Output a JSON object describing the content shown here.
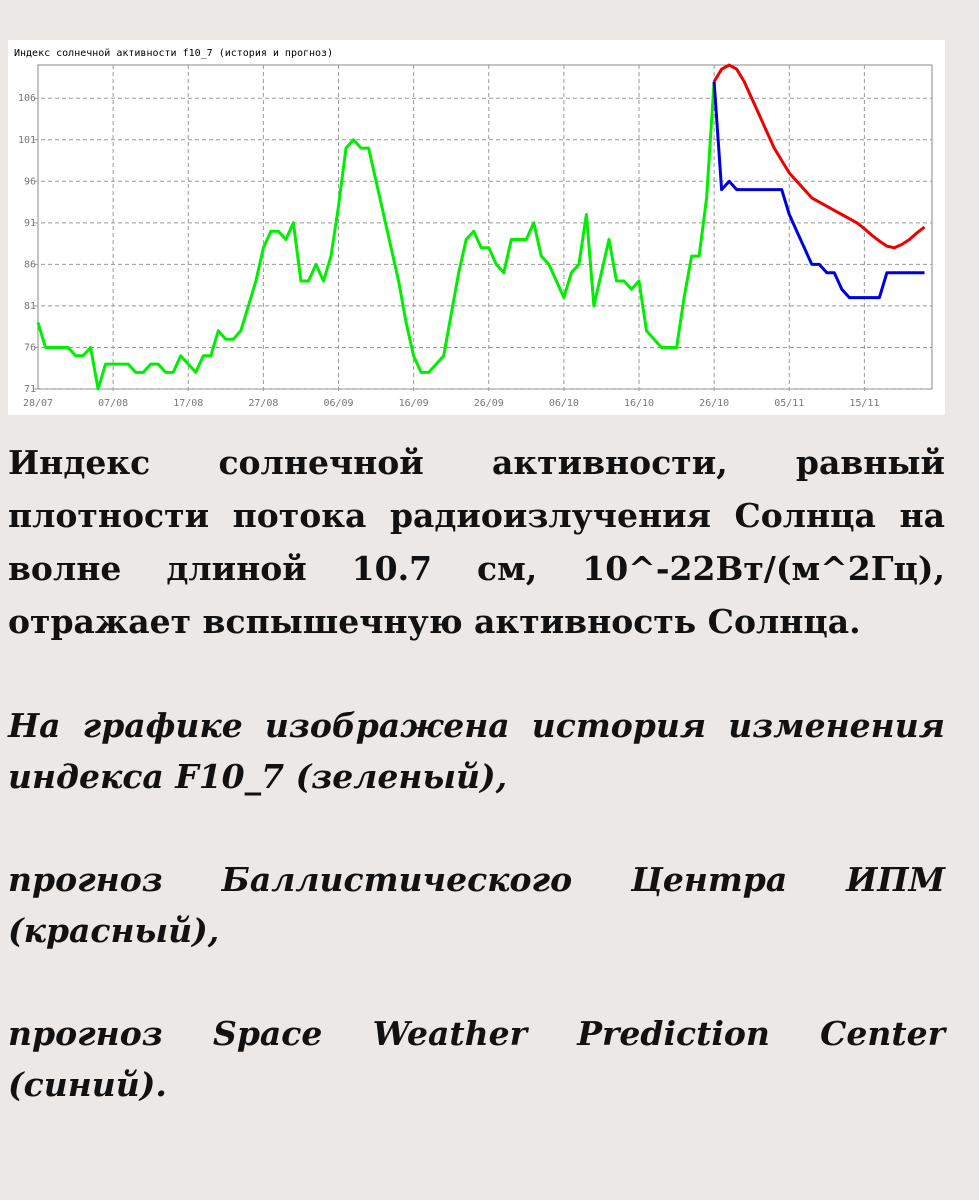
{
  "chart_data": {
    "type": "line",
    "title": "Индекс солнечной активности f10_7 (история и прогноз)",
    "categories": [
      "28/07",
      null,
      null,
      null,
      null,
      null,
      null,
      null,
      null,
      null,
      "07/08",
      null,
      null,
      null,
      null,
      null,
      null,
      null,
      null,
      null,
      "17/08",
      null,
      null,
      null,
      null,
      null,
      null,
      null,
      null,
      null,
      "27/08",
      null,
      null,
      null,
      null,
      null,
      null,
      null,
      null,
      null,
      "06/09",
      null,
      null,
      null,
      null,
      null,
      null,
      null,
      null,
      null,
      "16/09",
      null,
      null,
      null,
      null,
      null,
      null,
      null,
      null,
      null,
      "26/09",
      null,
      null,
      null,
      null,
      null,
      null,
      null,
      null,
      null,
      "06/10",
      null,
      null,
      null,
      null,
      null,
      null,
      null,
      null,
      null,
      "16/10",
      null,
      null,
      null,
      null,
      null,
      null,
      null,
      null,
      null,
      "26/10",
      null,
      null,
      null,
      null,
      null,
      null,
      null,
      null,
      null,
      "05/11",
      null,
      null,
      null,
      null,
      null,
      null,
      null,
      null,
      null,
      "15/11",
      null,
      null,
      null,
      null,
      null,
      null,
      null,
      null,
      null
    ],
    "series": [
      {
        "color": "#00ee00",
        "values": [
          79,
          76,
          76,
          76,
          76,
          75,
          75,
          76,
          71,
          74,
          74,
          74,
          74,
          73,
          73,
          74,
          74,
          73,
          73,
          75,
          74,
          73,
          75,
          75,
          78,
          77,
          77,
          78,
          81,
          84,
          88,
          90,
          90,
          89,
          91,
          84,
          84,
          86,
          84,
          87,
          93,
          100,
          101,
          100,
          100,
          96,
          92,
          88,
          84,
          79,
          75,
          73,
          73,
          74,
          75,
          80,
          85,
          89,
          90,
          88,
          88,
          86,
          85,
          89,
          89,
          89,
          91,
          87,
          86,
          84,
          82,
          85,
          86,
          92,
          81,
          85,
          89,
          84,
          84,
          83,
          84,
          78,
          77,
          76,
          76,
          76,
          82,
          87,
          87,
          94,
          108,
          null,
          null,
          null,
          null,
          null,
          null,
          null,
          null,
          null,
          null,
          null,
          null,
          null,
          null,
          null,
          null,
          null,
          null,
          null,
          null,
          null,
          null,
          null,
          null,
          null,
          null,
          null,
          null,
          null
        ]
      },
      {
        "color": "#ee0000",
        "values": [
          null,
          null,
          null,
          null,
          null,
          null,
          null,
          null,
          null,
          null,
          null,
          null,
          null,
          null,
          null,
          null,
          null,
          null,
          null,
          null,
          null,
          null,
          null,
          null,
          null,
          null,
          null,
          null,
          null,
          null,
          null,
          null,
          null,
          null,
          null,
          null,
          null,
          null,
          null,
          null,
          null,
          null,
          null,
          null,
          null,
          null,
          null,
          null,
          null,
          null,
          null,
          null,
          null,
          null,
          null,
          null,
          null,
          null,
          null,
          null,
          null,
          null,
          null,
          null,
          null,
          null,
          null,
          null,
          null,
          null,
          null,
          null,
          null,
          null,
          null,
          null,
          null,
          null,
          null,
          null,
          null,
          null,
          null,
          null,
          null,
          null,
          null,
          null,
          null,
          null,
          108,
          109.5,
          110,
          109.5,
          108,
          106,
          104,
          102,
          100,
          98.5,
          97,
          96,
          95,
          94,
          93.5,
          93,
          92.5,
          92,
          91.5,
          91,
          90.3,
          89.5,
          88.8,
          88.2,
          88,
          88.4,
          89,
          89.8,
          90.5,
          null
        ]
      },
      {
        "color": "#0000dd",
        "values": [
          null,
          null,
          null,
          null,
          null,
          null,
          null,
          null,
          null,
          null,
          null,
          null,
          null,
          null,
          null,
          null,
          null,
          null,
          null,
          null,
          null,
          null,
          null,
          null,
          null,
          null,
          null,
          null,
          null,
          null,
          null,
          null,
          null,
          null,
          null,
          null,
          null,
          null,
          null,
          null,
          null,
          null,
          null,
          null,
          null,
          null,
          null,
          null,
          null,
          null,
          null,
          null,
          null,
          null,
          null,
          null,
          null,
          null,
          null,
          null,
          null,
          null,
          null,
          null,
          null,
          null,
          null,
          null,
          null,
          null,
          null,
          null,
          null,
          null,
          null,
          null,
          null,
          null,
          null,
          null,
          null,
          null,
          null,
          null,
          null,
          null,
          null,
          null,
          null,
          null,
          108,
          95,
          96,
          95,
          95,
          95,
          95,
          95,
          95,
          95,
          92,
          90,
          88,
          86,
          86,
          85,
          85,
          83,
          82,
          82,
          82,
          82,
          82,
          85,
          85,
          85,
          85,
          85,
          85,
          null
        ]
      }
    ],
    "ylim": [
      71,
      110
    ],
    "yticks": [
      71,
      76,
      81,
      86,
      91,
      96,
      101,
      106
    ],
    "grid": true
  },
  "text": {
    "p1": "Индекс солнечной активности, равный плотности потока радиоизлучения Солнца на волне длиной 10.7 см, 10^-22Вт/(м^2Гц), отражает вспышечную активность Солнца.",
    "p2": "На графике изображена история изменения индекса F10_7 (зеленый),",
    "p3": "прогноз Баллистического Центра ИПМ (красный),",
    "p4": "прогноз Space Weather Prediction Center (синий)."
  }
}
